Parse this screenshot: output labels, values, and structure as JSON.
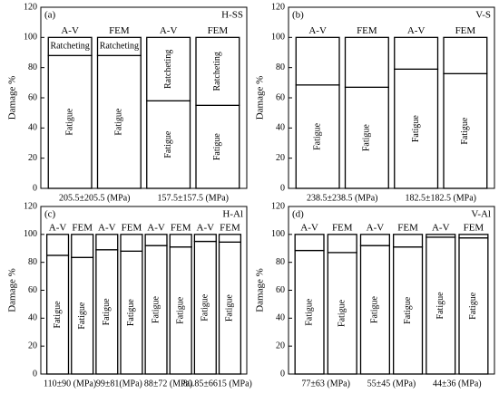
{
  "chart_data": [
    {
      "type": "bar",
      "stacked": true,
      "panel": "(a)",
      "label": "H-SS",
      "ylabel": "Damage %",
      "ylim": [
        0,
        120
      ],
      "yticks": [
        0,
        20,
        40,
        60,
        80,
        100,
        120
      ],
      "categories": [
        "A-V",
        "FEM",
        "A-V",
        "FEM"
      ],
      "groups": [
        "205.5±205.5 (MPa)",
        "157.5±157.5 (MPa)"
      ],
      "series": [
        {
          "name": "Fatigue",
          "color": "#ffffff",
          "values": [
            88,
            88,
            58,
            55
          ]
        },
        {
          "name": "Ratcheting",
          "color": "#ffffff",
          "values": [
            12,
            12,
            42,
            45
          ]
        }
      ]
    },
    {
      "type": "bar",
      "stacked": true,
      "panel": "(b)",
      "label": "V-S",
      "ylabel": "Damage %",
      "ylim": [
        0,
        120
      ],
      "yticks": [
        0,
        20,
        40,
        60,
        80,
        100,
        120
      ],
      "categories": [
        "A-V",
        "FEM",
        "A-V",
        "FEM"
      ],
      "groups": [
        "238.5±238.5 (MPa)",
        "182.5±182.5 (MPa)"
      ],
      "series": [
        {
          "name": "Fatigue",
          "color": "#ffffff",
          "values": [
            68.5,
            67,
            79,
            76
          ]
        },
        {
          "color": "#ffffff",
          "values": [
            31.5,
            33,
            21,
            24
          ]
        }
      ]
    },
    {
      "type": "bar",
      "stacked": true,
      "panel": "(c)",
      "label": "H-Al",
      "ylabel": "Damage %",
      "ylim": [
        0,
        120
      ],
      "yticks": [
        0,
        20,
        40,
        60,
        80,
        100,
        120
      ],
      "categories": [
        "A-V",
        "FEM",
        "A-V",
        "FEM",
        "A-V",
        "FEM",
        "A-V",
        "FEM"
      ],
      "groups": [
        "110±90 (MPa)",
        "99±81(MPa)",
        "88±72 (MPa)",
        "80.85±6615 (MPa)"
      ],
      "series": [
        {
          "name": "Fatigue",
          "color": "#ffffff",
          "values": [
            85,
            83.5,
            89,
            88,
            92,
            91,
            95,
            94.5
          ]
        },
        {
          "color": "#ffffff",
          "values": [
            15,
            16.5,
            11,
            12,
            8,
            9,
            5,
            5.5
          ]
        }
      ]
    },
    {
      "type": "bar",
      "stacked": true,
      "panel": "(d)",
      "label": "V-Al",
      "ylabel": "Damage %",
      "ylim": [
        0,
        120
      ],
      "yticks": [
        0,
        20,
        40,
        60,
        80,
        100,
        120
      ],
      "categories": [
        "A-V",
        "FEM",
        "A-V",
        "FEM",
        "A-V",
        "FEM"
      ],
      "groups": [
        "77±63 (MPa)",
        "55±45 (MPa)",
        "44±36 (MPa)"
      ],
      "series": [
        {
          "name": "Fatigue",
          "color": "#ffffff",
          "values": [
            88.5,
            87,
            92,
            91,
            98,
            97.5
          ]
        },
        {
          "color": "#ffffff",
          "values": [
            11.5,
            13,
            8,
            9,
            2,
            2.5
          ]
        }
      ]
    }
  ]
}
